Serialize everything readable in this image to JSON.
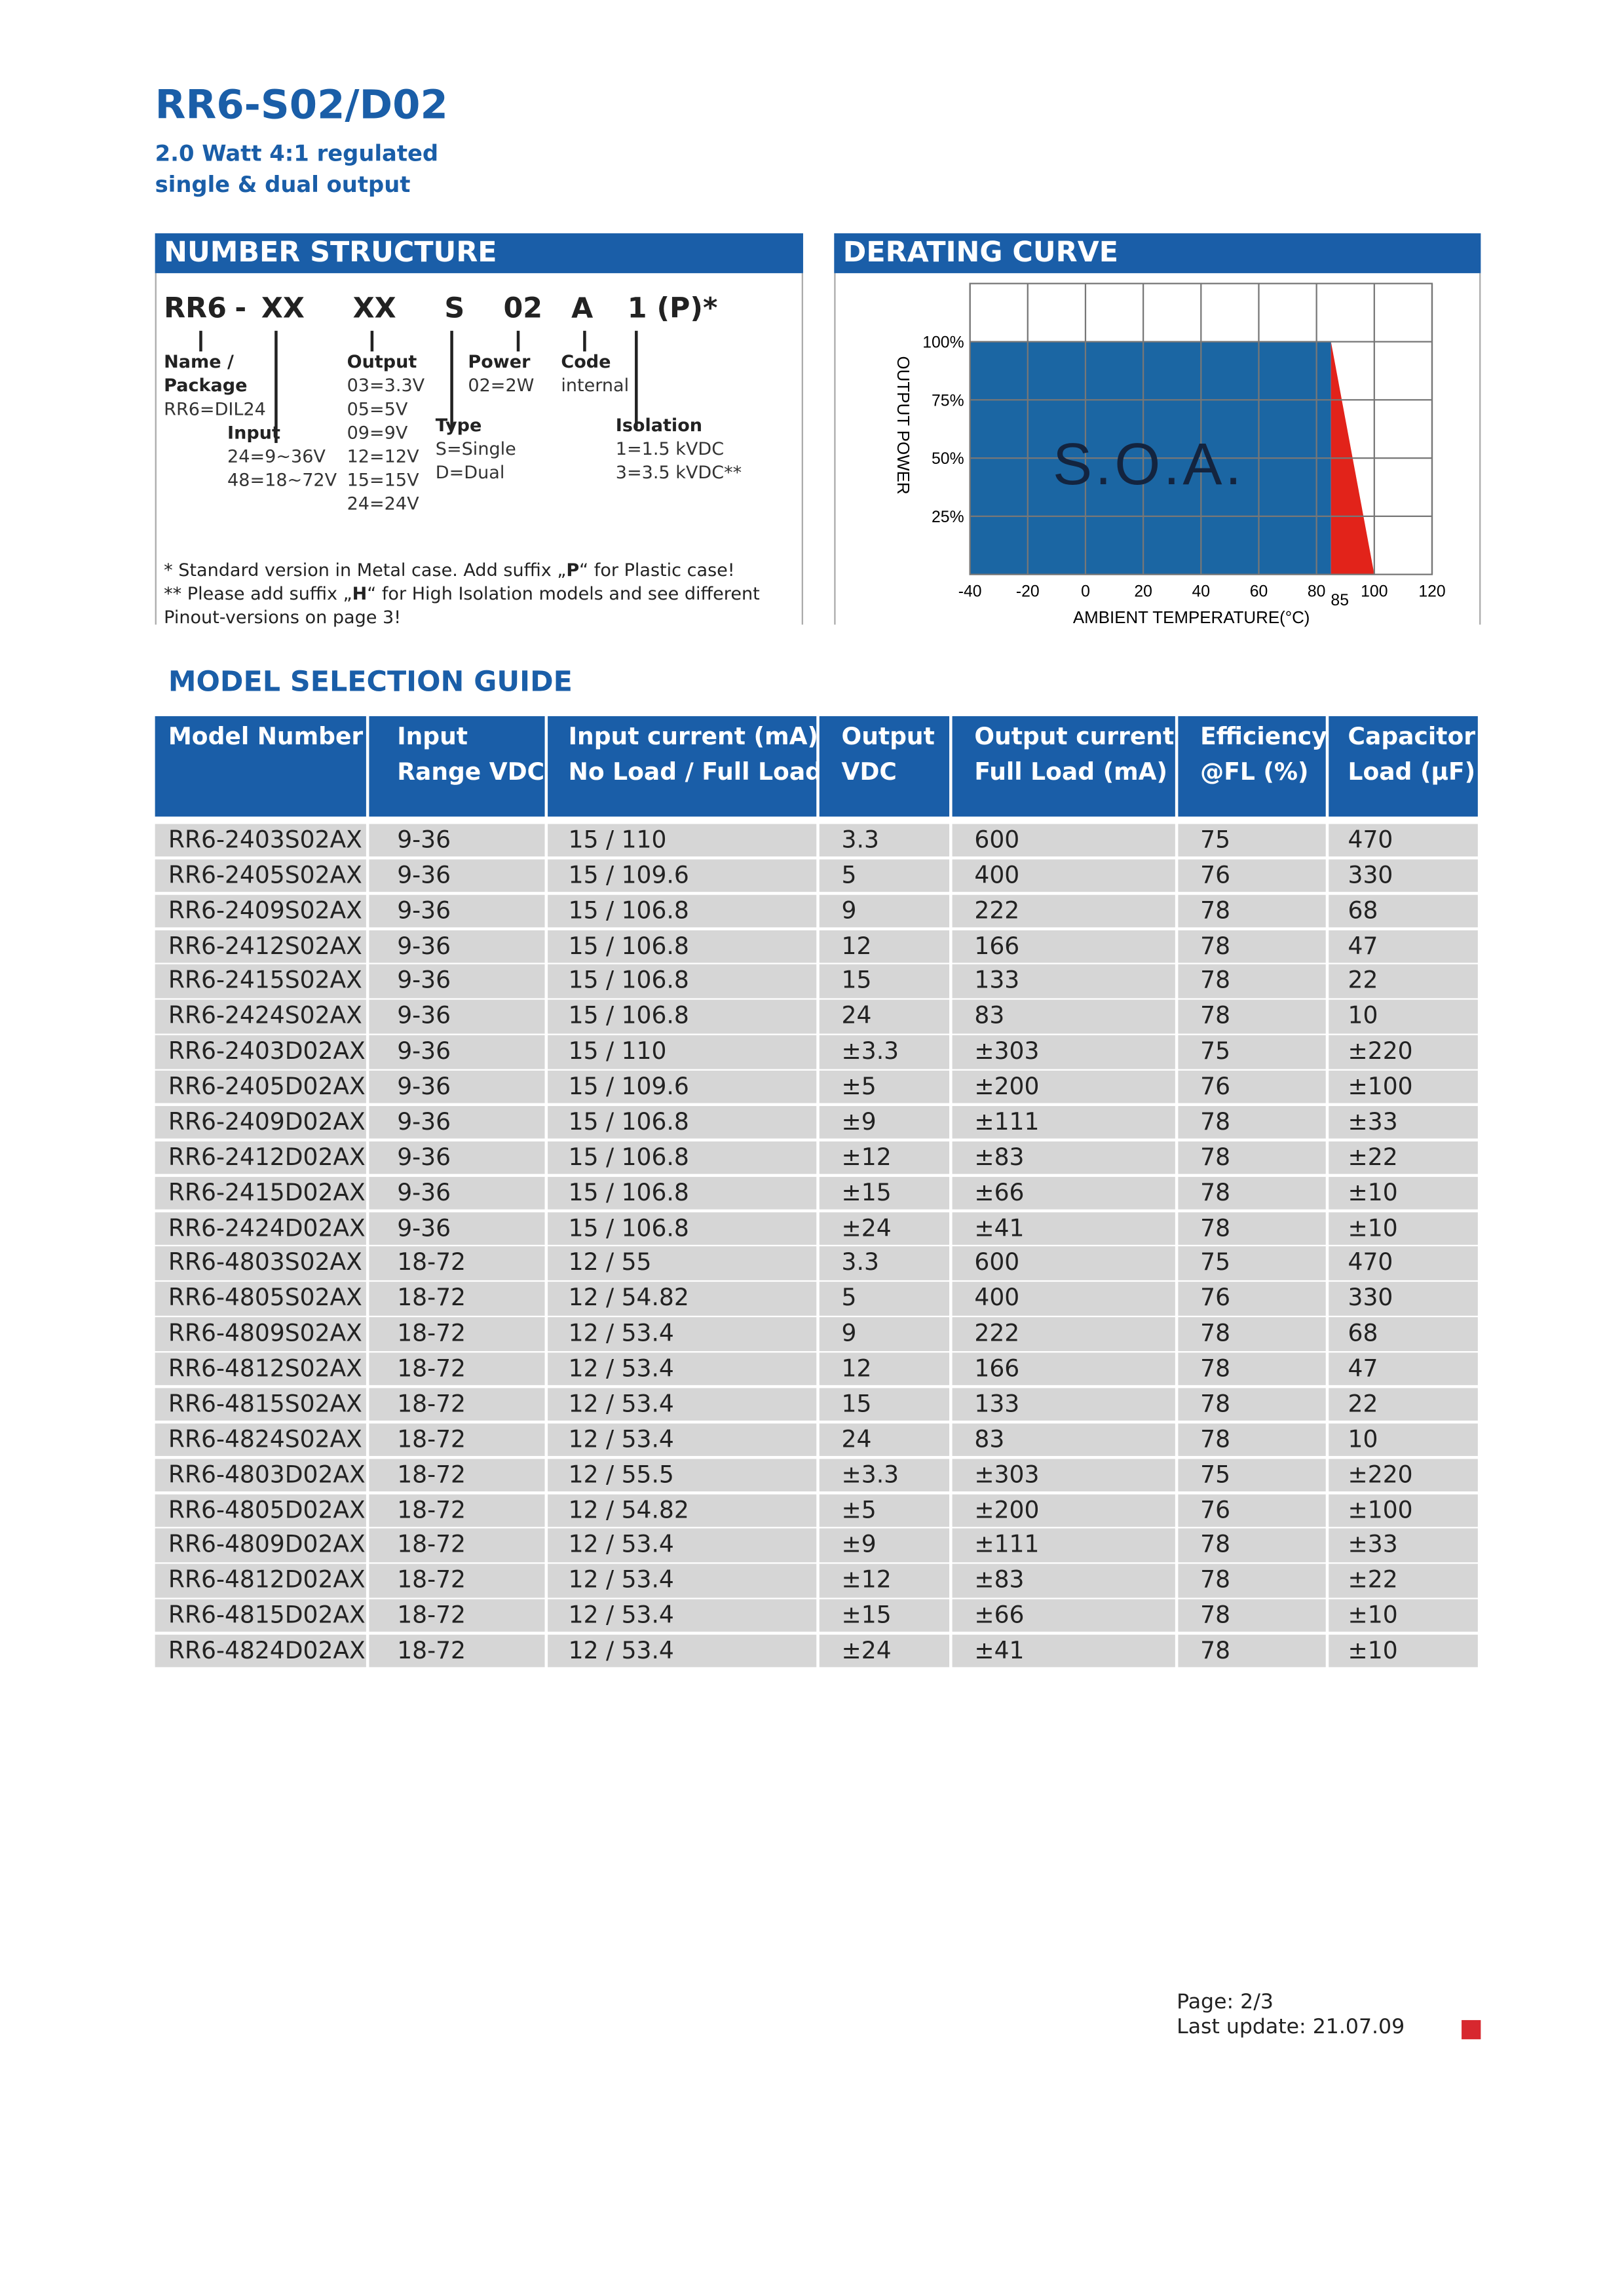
{
  "header": {
    "title": "RR6-S02/D02",
    "subtitle": [
      "2.0 Watt 4:1 regulated",
      "single & dual output"
    ]
  },
  "number_structure": {
    "title": "NUMBER STRUCTURE",
    "code": [
      "RR6",
      "-",
      "XX",
      "XX",
      "S",
      "02",
      "A",
      "1 (P)*"
    ],
    "fields": [
      {
        "label": [
          "Name /",
          "Package"
        ],
        "options": [
          "RR6=DIL24"
        ]
      },
      {
        "label": [
          "Input"
        ],
        "options": [
          "24=9~36V",
          "48=18~72V"
        ]
      },
      {
        "label": [
          "Output"
        ],
        "options": [
          "03=3.3V",
          "05=5V",
          "09=9V",
          "12=12V",
          "15=15V",
          "24=24V"
        ]
      },
      {
        "label": [
          "Power"
        ],
        "options": [
          "02=2W"
        ]
      },
      {
        "label": [
          "Code"
        ],
        "options": [
          "internal"
        ]
      },
      {
        "label": [
          "Type"
        ],
        "options": [
          "S=Single",
          "D=Dual"
        ]
      },
      {
        "label": [
          "Isolation"
        ],
        "options": [
          "1=1.5 kVDC",
          "3=3.5 kVDC**"
        ]
      }
    ],
    "notes": [
      [
        "* Standard version in Metal case. Add suffix „",
        "P",
        "“ for Plastic case!"
      ],
      [
        "** Please add suffix „",
        "H",
        "“ for High Isolation models and see different"
      ],
      [
        "Pinout-versions on page 3!"
      ]
    ]
  },
  "chart_data": {
    "type": "area",
    "title": "DERATING CURVE",
    "annotation": "S.O.A.",
    "xlabel": "AMBIENT TEMPERATURE(°C)",
    "ylabel": "OUTPUT POWER",
    "xlim": [
      -40,
      120
    ],
    "ylim": [
      0,
      125
    ],
    "xticks": [
      -40,
      -20,
      0,
      20,
      40,
      60,
      80,
      85,
      100,
      120
    ],
    "yticks": [
      {
        "value": 25,
        "label": "25%"
      },
      {
        "value": 50,
        "label": "50%"
      },
      {
        "value": 75,
        "label": "75%"
      },
      {
        "value": 100,
        "label": "100%"
      }
    ],
    "grid": true,
    "series": [
      {
        "color": "#1b66a3",
        "x": [
          -40,
          85
        ],
        "values": [
          100,
          100
        ]
      },
      {
        "color": "#e2231a",
        "x": [
          85,
          100
        ],
        "values": [
          100,
          0
        ]
      }
    ]
  },
  "model_selection": {
    "title": "MODEL SELECTION GUIDE",
    "columns": [
      [
        "Model Number"
      ],
      [
        "Input",
        "Range VDC"
      ],
      [
        "Input current (mA)",
        "No Load / Full Load"
      ],
      [
        "Output",
        "VDC"
      ],
      [
        "Output current",
        "Full Load (mA)"
      ],
      [
        "Efficiency",
        "@FL (%)"
      ],
      [
        "Capacitor",
        "Load (μF)"
      ]
    ],
    "rows": [
      [
        "RR6-2403S02AX",
        "9-36",
        "15 / 110",
        "3.3",
        "600",
        "75",
        "470"
      ],
      [
        "RR6-2405S02AX",
        "9-36",
        "15 / 109.6",
        "5",
        "400",
        "76",
        "330"
      ],
      [
        "RR6-2409S02AX",
        "9-36",
        "15 / 106.8",
        "9",
        "222",
        "78",
        "68"
      ],
      [
        "RR6-2412S02AX",
        "9-36",
        "15 / 106.8",
        "12",
        "166",
        "78",
        "47"
      ],
      [
        "RR6-2415S02AX",
        "9-36",
        "15 / 106.8",
        "15",
        "133",
        "78",
        "22"
      ],
      [
        "RR6-2424S02AX",
        "9-36",
        "15 / 106.8",
        "24",
        "83",
        "78",
        "10"
      ],
      [
        "RR6-2403D02AX",
        "9-36",
        "15 / 110",
        "±3.3",
        "±303",
        "75",
        "±220"
      ],
      [
        "RR6-2405D02AX",
        "9-36",
        "15 / 109.6",
        "±5",
        "±200",
        "76",
        "±100"
      ],
      [
        "RR6-2409D02AX",
        "9-36",
        "15 / 106.8",
        "±9",
        "±111",
        "78",
        "±33"
      ],
      [
        "RR6-2412D02AX",
        "9-36",
        "15 / 106.8",
        "±12",
        "±83",
        "78",
        "±22"
      ],
      [
        "RR6-2415D02AX",
        "9-36",
        "15 / 106.8",
        "±15",
        "±66",
        "78",
        "±10"
      ],
      [
        "RR6-2424D02AX",
        "9-36",
        "15 / 106.8",
        "±24",
        "±41",
        "78",
        "±10"
      ],
      [
        "RR6-4803S02AX",
        "18-72",
        "12 / 55",
        "3.3",
        "600",
        "75",
        "470"
      ],
      [
        "RR6-4805S02AX",
        "18-72",
        "12 / 54.82",
        "5",
        "400",
        "76",
        "330"
      ],
      [
        "RR6-4809S02AX",
        "18-72",
        "12 / 53.4",
        "9",
        "222",
        "78",
        "68"
      ],
      [
        "RR6-4812S02AX",
        "18-72",
        "12 / 53.4",
        "12",
        "166",
        "78",
        "47"
      ],
      [
        "RR6-4815S02AX",
        "18-72",
        "12 / 53.4",
        "15",
        "133",
        "78",
        "22"
      ],
      [
        "RR6-4824S02AX",
        "18-72",
        "12 / 53.4",
        "24",
        "83",
        "78",
        "10"
      ],
      [
        "RR6-4803D02AX",
        "18-72",
        "12 / 55.5",
        "±3.3",
        "±303",
        "75",
        "±220"
      ],
      [
        "RR6-4805D02AX",
        "18-72",
        "12 / 54.82",
        "±5",
        "±200",
        "76",
        "±100"
      ],
      [
        "RR6-4809D02AX",
        "18-72",
        "12 / 53.4",
        "±9",
        "±111",
        "78",
        "±33"
      ],
      [
        "RR6-4812D02AX",
        "18-72",
        "12 / 53.4",
        "±12",
        "±83",
        "78",
        "±22"
      ],
      [
        "RR6-4815D02AX",
        "18-72",
        "12 / 53.4",
        "±15",
        "±66",
        "78",
        "±10"
      ],
      [
        "RR6-4824D02AX",
        "18-72",
        "12 / 53.4",
        "±24",
        "±41",
        "78",
        "±10"
      ]
    ]
  },
  "footer": {
    "page": "Page: 2/3",
    "last_update": "Last update: 21.07.09"
  }
}
